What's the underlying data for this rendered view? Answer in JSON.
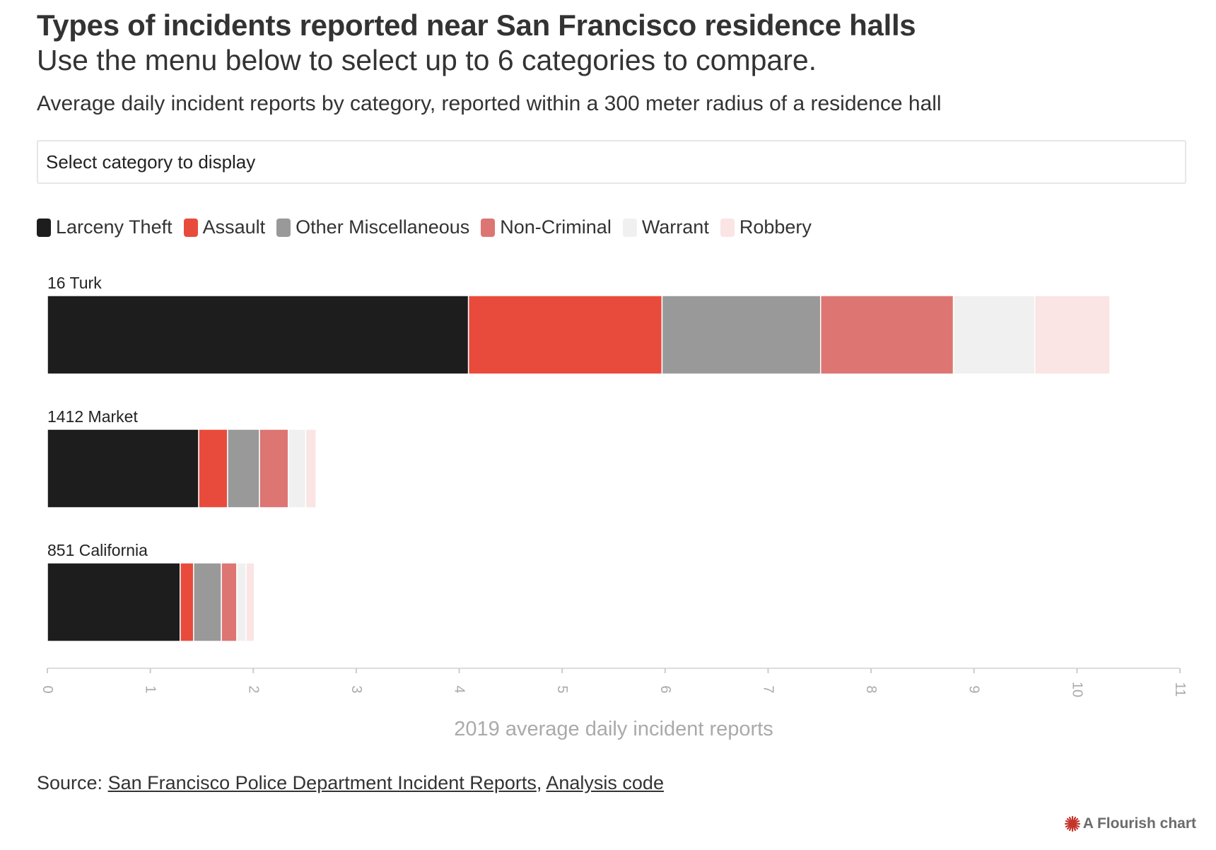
{
  "header": {
    "title": "Types of incidents reported near San Francisco residence halls",
    "subtitle": "Use the menu below to select up to 6 categories to compare.",
    "description": "Average daily incident reports by category, reported within a 300 meter radius of a residence hall"
  },
  "controls": {
    "category_select_label": "Select category to display"
  },
  "chart_data": {
    "type": "bar",
    "orientation": "horizontal",
    "stacked": true,
    "categories": [
      "16 Turk",
      "1412 Market",
      "851 California"
    ],
    "series": [
      {
        "name": "Larceny Theft",
        "color": "#1d1d1d",
        "values": [
          4.09,
          1.47,
          1.29
        ]
      },
      {
        "name": "Assault",
        "color": "#e84b3c",
        "values": [
          1.88,
          0.28,
          0.13
        ]
      },
      {
        "name": "Other Miscellaneous",
        "color": "#999999",
        "values": [
          1.54,
          0.31,
          0.27
        ]
      },
      {
        "name": "Non-Criminal",
        "color": "#dd7573",
        "values": [
          1.29,
          0.28,
          0.15
        ]
      },
      {
        "name": "Warrant",
        "color": "#f0f0f0",
        "values": [
          0.79,
          0.17,
          0.09
        ]
      },
      {
        "name": "Robbery",
        "color": "#fbe4e4",
        "values": [
          0.73,
          0.1,
          0.08
        ]
      }
    ],
    "xlabel": "2019 average daily incident reports",
    "ylabel": "",
    "xlim": [
      0,
      11
    ],
    "xticks": [
      "0",
      "1",
      "2",
      "3",
      "4",
      "5",
      "6",
      "7",
      "8",
      "9",
      "10",
      "11"
    ],
    "legend_position": "top-left",
    "grid": false
  },
  "footer": {
    "source_prefix": "Source: ",
    "source_link": "San Francisco Police Department Incident Reports",
    "separator": ", ",
    "code_link": "Analysis code",
    "credit": "A Flourish chart",
    "credit_icon": "flourish-logo-icon"
  }
}
